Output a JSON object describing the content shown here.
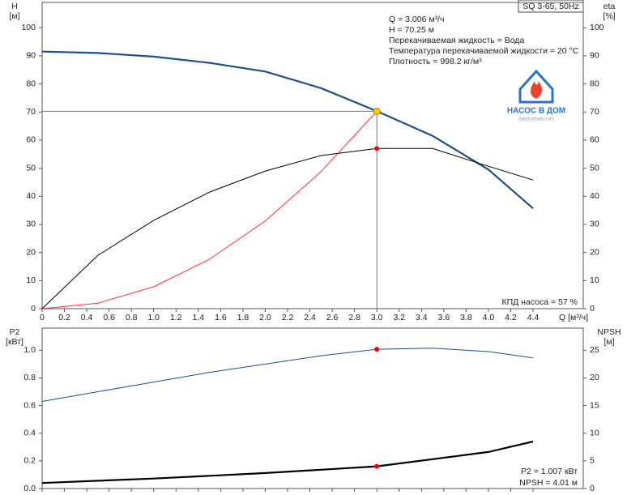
{
  "chart_data": [
    {
      "type": "line",
      "title": "SQ 3-65, 50Hz",
      "ylabel": [
        "H",
        "[м]"
      ],
      "y2label": [
        "eta",
        "[%]"
      ],
      "xlabel": "Q [м³/ч]",
      "x": [
        0,
        0.5,
        1.0,
        1.5,
        2.0,
        2.5,
        3.0,
        3.5,
        4.0,
        4.4
      ],
      "series": [
        {
          "color": "#1f4e8c",
          "values": [
            91.5,
            91.0,
            89.7,
            87.5,
            84.4,
            78.5,
            70.3,
            61.5,
            49.5,
            35.7
          ]
        },
        {
          "color": "#000000",
          "axis": "y2",
          "values": [
            0,
            19,
            31.4,
            41.5,
            49,
            54.5,
            57,
            57,
            50.7,
            45.8
          ]
        },
        {
          "color": "#ff3030",
          "values": [
            0,
            1.95,
            7.8,
            17.6,
            31.2,
            48.8,
            70.25,
            null,
            null,
            null
          ]
        }
      ],
      "points": [
        {
          "x": 3.0,
          "y": 70.25,
          "color": "#ffd000"
        },
        {
          "x": 3.0,
          "y": 57,
          "color": "#ff0000"
        }
      ],
      "xlim": [
        0,
        4.85
      ],
      "xticks": [
        0,
        0.2,
        0.4,
        0.6,
        0.8,
        {
          "value": 1.0,
          "label": "1.0"
        },
        1.2,
        1.4,
        1.6,
        1.8,
        {
          "value": 2.0,
          "label": "2.0"
        },
        2.2,
        2.4,
        2.6,
        2.8,
        {
          "value": 3.0,
          "label": "3.0"
        },
        3.2,
        3.4,
        3.6,
        3.8,
        {
          "value": 4.0,
          "label": "4.0"
        },
        4.2,
        4.4
      ],
      "ylim": [
        0,
        109
      ],
      "yticks": [
        0,
        10,
        20,
        30,
        40,
        50,
        60,
        70,
        80,
        90,
        100
      ],
      "y2lim": [
        0,
        109
      ],
      "y2ticks": [
        0,
        10,
        20,
        30,
        40,
        50,
        60,
        70,
        80,
        90,
        100
      ],
      "annotations": [
        "Q = 3.006 м³/ч",
        "H = 70.25 м",
        "Перекачиваемая жидкость = Вода",
        "Температура перекачиваемой жидкости = 20 °C",
        "Плотность = 998.2 кг/м³",
        "КПД насоса = 57 %"
      ]
    },
    {
      "type": "line",
      "ylabel": [
        "P2",
        "[кВт]"
      ],
      "y2label": [
        "NPSH",
        "[м]"
      ],
      "x": [
        0,
        0.5,
        1.0,
        1.5,
        2.0,
        2.5,
        3.0,
        3.5,
        4.0,
        4.4
      ],
      "series": [
        {
          "color": "#1f4e8c",
          "values": [
            0.63,
            0.7,
            0.77,
            0.84,
            0.9,
            0.96,
            1.007,
            1.015,
            0.99,
            0.945
          ]
        },
        {
          "color": "#000000",
          "axis": "y2",
          "values": [
            1.0,
            1.4,
            1.8,
            2.3,
            2.8,
            3.4,
            4.01,
            5.3,
            6.6,
            8.5
          ]
        }
      ],
      "points": [
        {
          "x": 3.0,
          "y": 1.007,
          "color": "#ff0000"
        },
        {
          "x": 3.0,
          "y": 4.01,
          "color": "#ff0000",
          "axis": "y2"
        }
      ],
      "xlim": [
        0,
        4.85
      ],
      "ylim": [
        0,
        1.16
      ],
      "yticks": [
        {
          "value": 0,
          "label": "0.0"
        },
        0.2,
        0.4,
        0.6,
        0.8,
        {
          "value": 1.0,
          "label": "1.0"
        }
      ],
      "y2lim": [
        0,
        29
      ],
      "y2ticks": [
        0,
        5,
        10,
        15,
        20,
        25
      ],
      "annotations": [
        "P2 = 1.007 кВт",
        "NPSH = 4.01 м"
      ]
    }
  ],
  "logo": {
    "title": "НАСОС В ДОМ",
    "url": "nasosvdom.com"
  }
}
